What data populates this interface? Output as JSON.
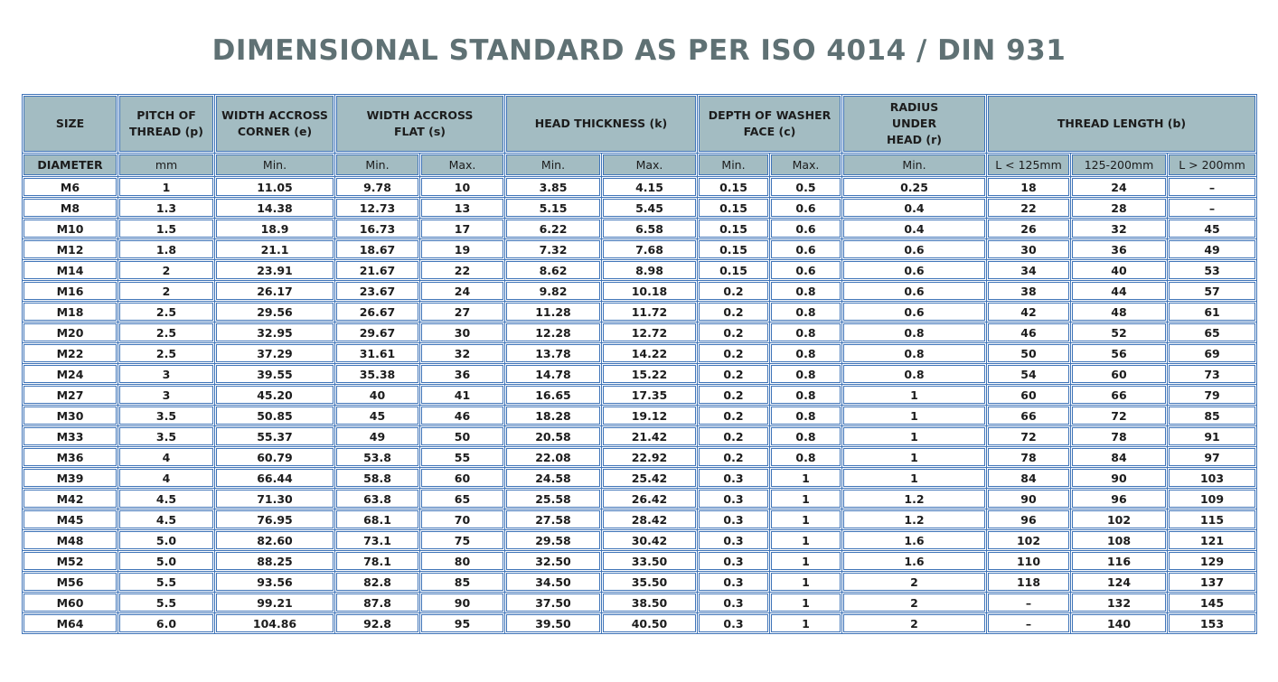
{
  "title": "DIMENSIONAL STANDARD AS PER ISO 4014 / DIN 931",
  "header": {
    "size": "SIZE",
    "pitch": "PITCH OF\nTHREAD (p)",
    "width_corner": "WIDTH ACCROSS\nCORNER (e)",
    "width_flat": "WIDTH ACCROSS\nFLAT  (s)",
    "head_thickness": "HEAD THICKNESS (k)",
    "washer_depth": "DEPTH OF WASHER\nFACE (c)",
    "radius": "RADIUS\nUNDER\nHEAD (r)",
    "thread_length": "THREAD LENGTH (b)"
  },
  "subheader": [
    "DIAMETER",
    "mm",
    "Min.",
    "Min.",
    "Max.",
    "Min.",
    "Max.",
    "Min.",
    "Max.",
    "Min.",
    "L < 125mm",
    "125-200mm",
    "L > 200mm"
  ],
  "rows": [
    [
      "M6",
      "1",
      "11.05",
      "9.78",
      "10",
      "3.85",
      "4.15",
      "0.15",
      "0.5",
      "0.25",
      "18",
      "24",
      "–"
    ],
    [
      "M8",
      "1.3",
      "14.38",
      "12.73",
      "13",
      "5.15",
      "5.45",
      "0.15",
      "0.6",
      "0.4",
      "22",
      "28",
      "–"
    ],
    [
      "M10",
      "1.5",
      "18.9",
      "16.73",
      "17",
      "6.22",
      "6.58",
      "0.15",
      "0.6",
      "0.4",
      "26",
      "32",
      "45"
    ],
    [
      "M12",
      "1.8",
      "21.1",
      "18.67",
      "19",
      "7.32",
      "7.68",
      "0.15",
      "0.6",
      "0.6",
      "30",
      "36",
      "49"
    ],
    [
      "M14",
      "2",
      "23.91",
      "21.67",
      "22",
      "8.62",
      "8.98",
      "0.15",
      "0.6",
      "0.6",
      "34",
      "40",
      "53"
    ],
    [
      "M16",
      "2",
      "26.17",
      "23.67",
      "24",
      "9.82",
      "10.18",
      "0.2",
      "0.8",
      "0.6",
      "38",
      "44",
      "57"
    ],
    [
      "M18",
      "2.5",
      "29.56",
      "26.67",
      "27",
      "11.28",
      "11.72",
      "0.2",
      "0.8",
      "0.6",
      "42",
      "48",
      "61"
    ],
    [
      "M20",
      "2.5",
      "32.95",
      "29.67",
      "30",
      "12.28",
      "12.72",
      "0.2",
      "0.8",
      "0.8",
      "46",
      "52",
      "65"
    ],
    [
      "M22",
      "2.5",
      "37.29",
      "31.61",
      "32",
      "13.78",
      "14.22",
      "0.2",
      "0.8",
      "0.8",
      "50",
      "56",
      "69"
    ],
    [
      "M24",
      "3",
      "39.55",
      "35.38",
      "36",
      "14.78",
      "15.22",
      "0.2",
      "0.8",
      "0.8",
      "54",
      "60",
      "73"
    ],
    [
      "M27",
      "3",
      "45.20",
      "40",
      "41",
      "16.65",
      "17.35",
      "0.2",
      "0.8",
      "1",
      "60",
      "66",
      "79"
    ],
    [
      "M30",
      "3.5",
      "50.85",
      "45",
      "46",
      "18.28",
      "19.12",
      "0.2",
      "0.8",
      "1",
      "66",
      "72",
      "85"
    ],
    [
      "M33",
      "3.5",
      "55.37",
      "49",
      "50",
      "20.58",
      "21.42",
      "0.2",
      "0.8",
      "1",
      "72",
      "78",
      "91"
    ],
    [
      "M36",
      "4",
      "60.79",
      "53.8",
      "55",
      "22.08",
      "22.92",
      "0.2",
      "0.8",
      "1",
      "78",
      "84",
      "97"
    ],
    [
      "M39",
      "4",
      "66.44",
      "58.8",
      "60",
      "24.58",
      "25.42",
      "0.3",
      "1",
      "1",
      "84",
      "90",
      "103"
    ],
    [
      "M42",
      "4.5",
      "71.30",
      "63.8",
      "65",
      "25.58",
      "26.42",
      "0.3",
      "1",
      "1.2",
      "90",
      "96",
      "109"
    ],
    [
      "M45",
      "4.5",
      "76.95",
      "68.1",
      "70",
      "27.58",
      "28.42",
      "0.3",
      "1",
      "1.2",
      "96",
      "102",
      "115"
    ],
    [
      "M48",
      "5.0",
      "82.60",
      "73.1",
      "75",
      "29.58",
      "30.42",
      "0.3",
      "1",
      "1.6",
      "102",
      "108",
      "121"
    ],
    [
      "M52",
      "5.0",
      "88.25",
      "78.1",
      "80",
      "32.50",
      "33.50",
      "0.3",
      "1",
      "1.6",
      "110",
      "116",
      "129"
    ],
    [
      "M56",
      "5.5",
      "93.56",
      "82.8",
      "85",
      "34.50",
      "35.50",
      "0.3",
      "1",
      "2",
      "118",
      "124",
      "137"
    ],
    [
      "M60",
      "5.5",
      "99.21",
      "87.8",
      "90",
      "37.50",
      "38.50",
      "0.3",
      "1",
      "2",
      "–",
      "132",
      "145"
    ],
    [
      "M64",
      "6.0",
      "104.86",
      "92.8",
      "95",
      "39.50",
      "40.50",
      "0.3",
      "1",
      "2",
      "–",
      "140",
      "153"
    ]
  ]
}
